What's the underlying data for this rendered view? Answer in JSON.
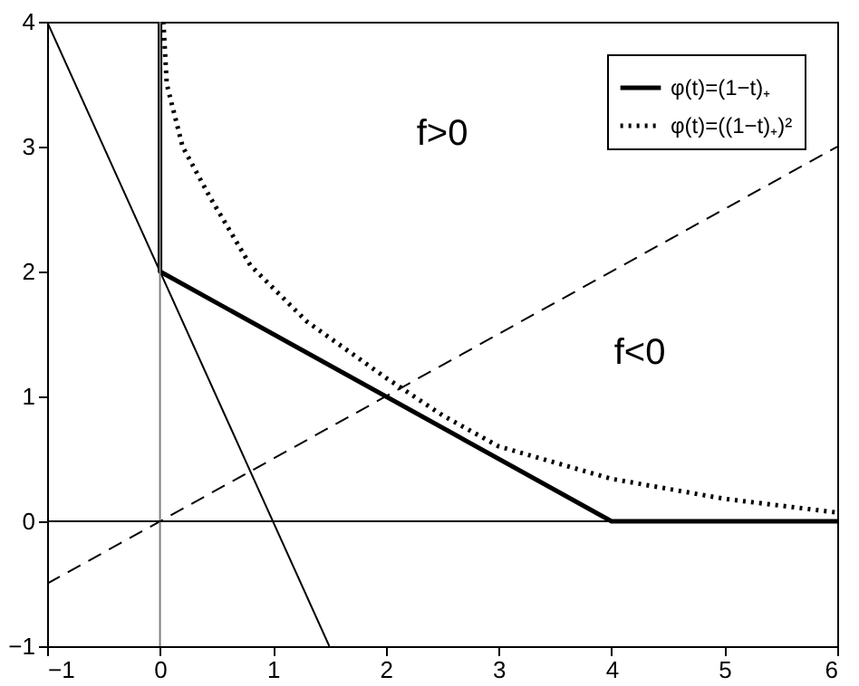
{
  "chart_data": {
    "type": "line",
    "series": [
      {
        "name": "φ(t)=(1−t)₊",
        "color": "#000000",
        "line_style": "solid",
        "x": [
          0,
          0,
          4,
          6
        ],
        "values": [
          4,
          2,
          0,
          0
        ]
      },
      {
        "name": "φ(t)=((1−t)₊)²",
        "color": "#000000",
        "line_style": "dotted",
        "x": [
          0.03,
          0.06,
          0.2,
          0.44,
          0.8,
          1.3,
          2,
          2.5,
          3,
          4,
          5,
          6
        ],
        "values": [
          4,
          3.5,
          3,
          2.6,
          2.05,
          1.6,
          1.15,
          0.85,
          0.6,
          0.34,
          0.18,
          0.07
        ]
      },
      {
        "color": "#000000",
        "line_style": "solid",
        "x": [
          -1,
          1.5
        ],
        "values": [
          4,
          -1
        ]
      },
      {
        "color": "#000000",
        "line_style": "dashed",
        "x": [
          -1,
          6
        ],
        "values": [
          -0.5,
          3
        ]
      }
    ],
    "ref_lines": [
      {
        "axis": "x",
        "value": 0,
        "color": "#808080"
      },
      {
        "axis": "y",
        "value": 0,
        "color": "#000000"
      }
    ],
    "annotations": [
      "f>0",
      "f<0"
    ],
    "xlim": [
      -1,
      6
    ],
    "ylim": [
      -1,
      4
    ],
    "xticks": [
      -1,
      0,
      1,
      2,
      3,
      4,
      5,
      6
    ],
    "yticks": [
      -1,
      0,
      1,
      2,
      3,
      4
    ],
    "grid": false,
    "legend": "top right",
    "marker": "none"
  }
}
